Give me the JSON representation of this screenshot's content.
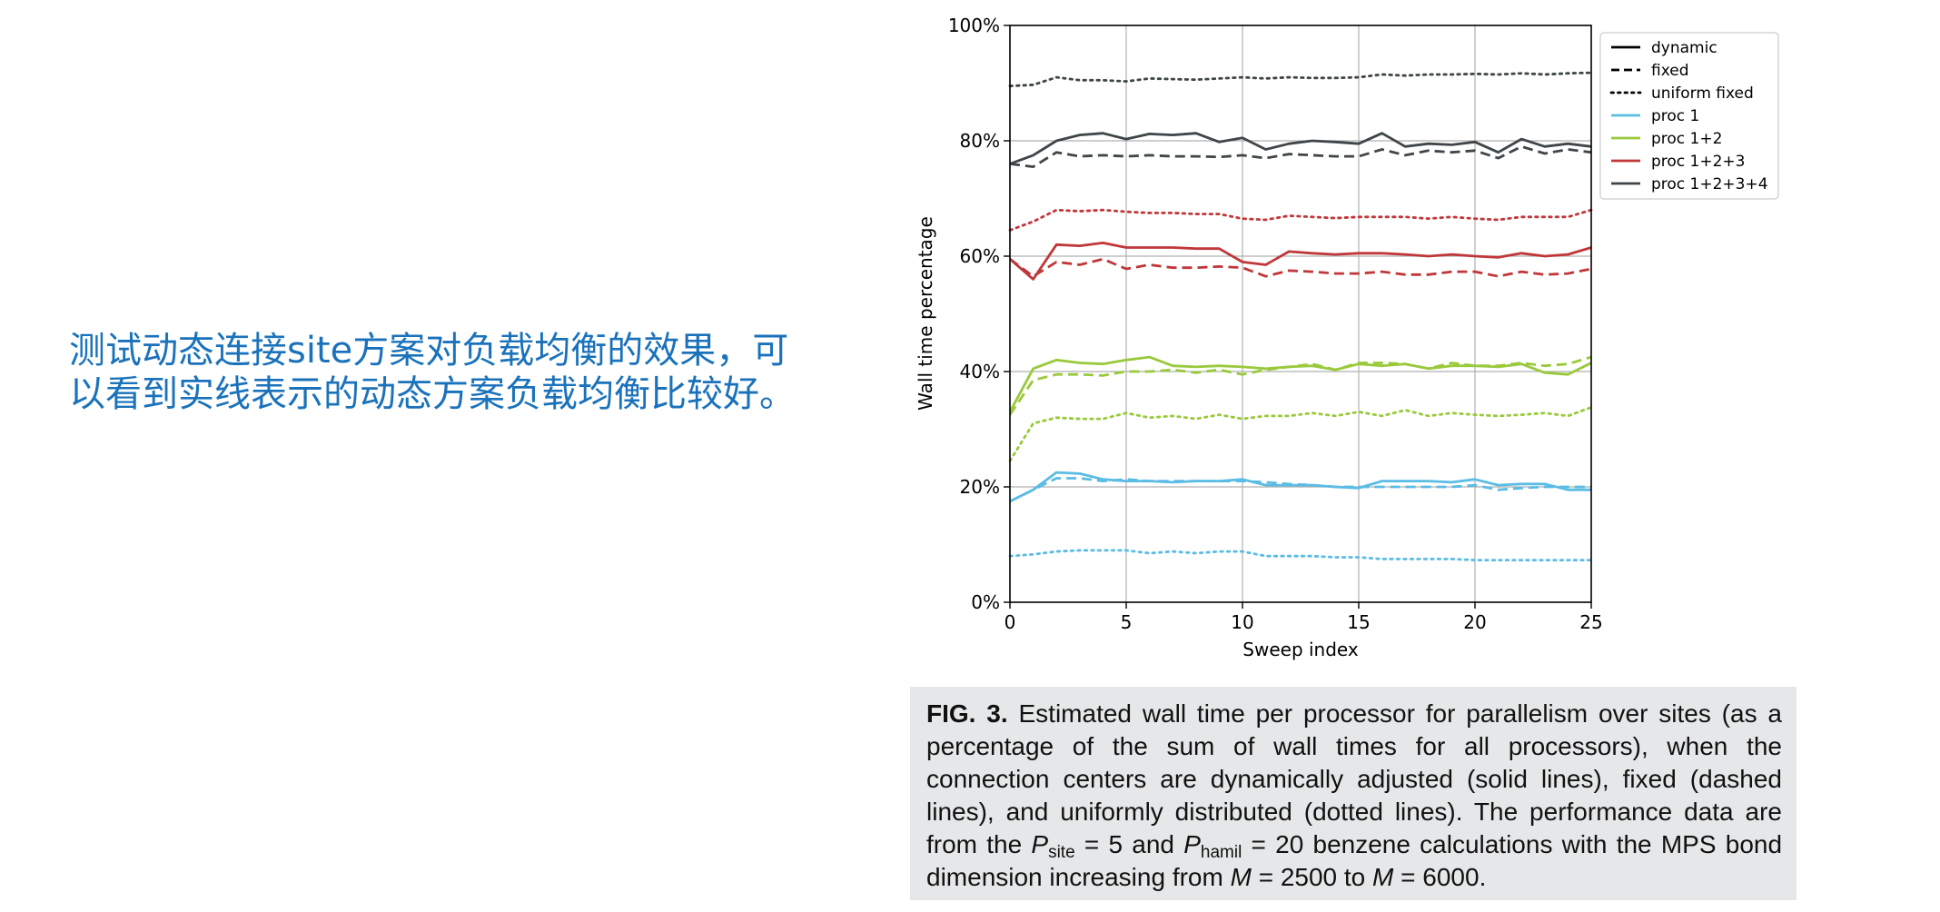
{
  "slide": {
    "text_line1": "测试动态连接site方案对负载均衡的效果，可",
    "text_line2": "以看到实线表示的动态方案负载均衡比较好。"
  },
  "caption": {
    "fig_label": "FIG. 3.",
    "text1": "Estimated wall time per processor for parallelism over sites (as a percentage of the sum of wall times for all processors), when the connection centers are dynamically adjusted (solid lines), fixed (dashed lines), and uniformly distributed (dotted lines). The performance data are from the",
    "p1_symbol": "P",
    "p1_sub": "site",
    "p1_eq": "= 5 and",
    "p2_symbol": "P",
    "p2_sub": "hamil",
    "p2_eq": "= 20 benzene calculations with the MPS bond dimension increasing from",
    "m1_symbol": "M",
    "m1_eq": "= 2500 to",
    "m2_symbol": "M",
    "m2_eq": "= 6000."
  },
  "chart_data": {
    "type": "line",
    "xlabel": "Sweep index",
    "ylabel": "Wall time percentage",
    "xlim": [
      0,
      25
    ],
    "ylim": [
      0,
      100
    ],
    "xticks": [
      0,
      5,
      10,
      15,
      20,
      25
    ],
    "yticks": [
      0,
      20,
      40,
      60,
      80,
      100
    ],
    "ytick_labels": [
      "0%",
      "20%",
      "40%",
      "60%",
      "80%",
      "100%"
    ],
    "grid": "vertical at x ticks, horizontal at 20/40/60/80",
    "legend_position": "top-right outside",
    "legend": [
      {
        "label": "dynamic",
        "style": "solid",
        "color": "#000000"
      },
      {
        "label": "fixed",
        "style": "dashed",
        "color": "#000000"
      },
      {
        "label": "uniform fixed",
        "style": "dotted",
        "color": "#000000"
      },
      {
        "label": "proc 1",
        "style": "solid",
        "color": "#5bbce4"
      },
      {
        "label": "proc 1+2",
        "style": "solid",
        "color": "#9ac93c"
      },
      {
        "label": "proc 1+2+3",
        "style": "solid",
        "color": "#c0373a"
      },
      {
        "label": "proc 1+2+3+4",
        "style": "solid",
        "color": "#3f4548"
      }
    ],
    "x": [
      0,
      1,
      2,
      3,
      4,
      5,
      6,
      7,
      8,
      9,
      10,
      11,
      12,
      13,
      14,
      15,
      16,
      17,
      18,
      19,
      20,
      21,
      22,
      23,
      24,
      25
    ],
    "series": [
      {
        "group": "proc 1+2+3+4",
        "style": "solid",
        "color": "#3f4548",
        "values": [
          76,
          77.5,
          80,
          81,
          81.3,
          80.3,
          81.2,
          81,
          81.3,
          79.8,
          80.5,
          78.5,
          79.5,
          80,
          79.8,
          79.5,
          81.3,
          79,
          79.5,
          79.3,
          79.8,
          78,
          80.3,
          79,
          79.5,
          79
        ]
      },
      {
        "group": "proc 1+2+3+4",
        "style": "dashed",
        "color": "#3f4548",
        "values": [
          76,
          75.5,
          78,
          77.3,
          77.5,
          77.3,
          77.5,
          77.3,
          77.3,
          77.2,
          77.5,
          77,
          77.7,
          77.5,
          77.3,
          77.3,
          78.5,
          77.5,
          78.3,
          78,
          78.3,
          77,
          79,
          77.8,
          78.5,
          78
        ]
      },
      {
        "group": "proc 1+2+3+4",
        "style": "dotted",
        "color": "#3f4548",
        "values": [
          89.5,
          89.7,
          91,
          90.5,
          90.5,
          90.3,
          90.8,
          90.7,
          90.6,
          90.8,
          91,
          90.8,
          91,
          90.9,
          90.9,
          91,
          91.5,
          91.3,
          91.5,
          91.5,
          91.6,
          91.5,
          91.7,
          91.5,
          91.7,
          91.8
        ]
      },
      {
        "group": "proc 1+2+3",
        "style": "solid",
        "color": "#c0373a",
        "values": [
          59.5,
          56,
          62,
          61.8,
          62.3,
          61.5,
          61.5,
          61.5,
          61.3,
          61.3,
          59,
          58.5,
          60.8,
          60.5,
          60.3,
          60.5,
          60.5,
          60.3,
          60,
          60.3,
          60,
          59.8,
          60.5,
          60,
          60.3,
          61.5
        ]
      },
      {
        "group": "proc 1+2+3",
        "style": "dashed",
        "color": "#c0373a",
        "values": [
          59.5,
          56.5,
          59,
          58.5,
          59.5,
          57.8,
          58.5,
          58,
          58,
          58.2,
          58,
          56.5,
          57.5,
          57.3,
          57,
          57,
          57.3,
          56.8,
          56.8,
          57.3,
          57.3,
          56.5,
          57.3,
          56.8,
          57,
          57.8
        ]
      },
      {
        "group": "proc 1+2+3",
        "style": "dotted",
        "color": "#c0373a",
        "values": [
          64.5,
          66,
          68,
          67.8,
          68,
          67.7,
          67.5,
          67.5,
          67.3,
          67.3,
          66.5,
          66.3,
          67,
          66.8,
          66.6,
          66.8,
          66.8,
          66.8,
          66.5,
          66.8,
          66.5,
          66.3,
          66.8,
          66.8,
          66.8,
          68
        ]
      },
      {
        "group": "proc 1+2",
        "style": "solid",
        "color": "#9ac93c",
        "values": [
          33,
          40.5,
          42,
          41.5,
          41.3,
          42,
          42.5,
          41,
          40.8,
          41,
          40.8,
          40.5,
          40.8,
          41,
          40.3,
          41.3,
          41,
          41.3,
          40.5,
          41,
          41,
          40.8,
          41.3,
          39.8,
          39.5,
          41.5
        ]
      },
      {
        "group": "proc 1+2",
        "style": "dashed",
        "color": "#9ac93c",
        "values": [
          32.5,
          38.5,
          39.5,
          39.5,
          39.3,
          40,
          40,
          40.3,
          39.8,
          40.3,
          39.5,
          40.3,
          40.8,
          41.3,
          40.3,
          41.5,
          41.5,
          41.3,
          40.5,
          41.5,
          41,
          41,
          41.5,
          41,
          41.3,
          42.5
        ]
      },
      {
        "group": "proc 1+2",
        "style": "dotted",
        "color": "#9ac93c",
        "values": [
          24.5,
          31,
          32,
          31.8,
          31.8,
          32.8,
          32,
          32.3,
          31.8,
          32.5,
          31.8,
          32.3,
          32.3,
          32.8,
          32.3,
          33,
          32.3,
          33.3,
          32.3,
          32.8,
          32.5,
          32.3,
          32.5,
          32.8,
          32.3,
          33.8
        ]
      },
      {
        "group": "proc 1",
        "style": "solid",
        "color": "#5bbce4",
        "values": [
          17.5,
          19.5,
          22.5,
          22.3,
          21.3,
          21,
          21,
          20.8,
          21,
          21,
          21.3,
          20.3,
          20.3,
          20.3,
          20,
          19.8,
          21,
          21,
          21,
          20.8,
          21.3,
          20.3,
          20.5,
          20.5,
          19.5,
          19.5
        ]
      },
      {
        "group": "proc 1",
        "style": "dashed",
        "color": "#5bbce4",
        "values": [
          17.5,
          19.5,
          21.5,
          21.5,
          21,
          21.3,
          21,
          21,
          21,
          21,
          21,
          20.8,
          20.5,
          20.3,
          20,
          20,
          20,
          20,
          20,
          20,
          20.3,
          19.5,
          19.8,
          20,
          20,
          20
        ]
      },
      {
        "group": "proc 1",
        "style": "dotted",
        "color": "#5bbce4",
        "values": [
          8,
          8.3,
          8.8,
          9,
          9,
          9,
          8.5,
          8.8,
          8.5,
          8.8,
          8.8,
          8,
          8,
          8,
          7.8,
          7.8,
          7.5,
          7.5,
          7.5,
          7.5,
          7.3,
          7.3,
          7.3,
          7.3,
          7.3,
          7.3
        ]
      }
    ]
  }
}
